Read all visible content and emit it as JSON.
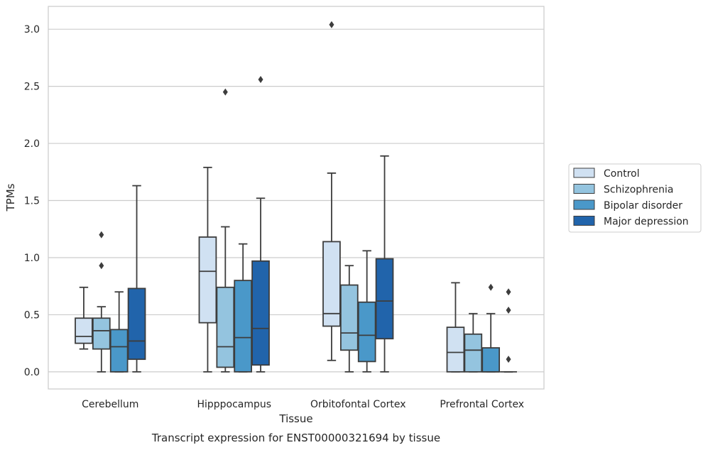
{
  "chart_data": {
    "type": "boxplot",
    "title": "",
    "caption": "Transcript expression for ENST00000321694 by tissue",
    "xlabel": "Tissue",
    "ylabel": "TPMs",
    "ylim": [
      -0.15,
      3.2
    ],
    "yticks": [
      0.0,
      0.5,
      1.0,
      1.5,
      2.0,
      2.5,
      3.0
    ],
    "ytick_labels": [
      "0.0",
      "0.5",
      "1.0",
      "1.5",
      "2.0",
      "2.5",
      "3.0"
    ],
    "grid": "horizontal",
    "legend_position": "right",
    "categories": [
      "Cerebellum",
      "Hipppocampus",
      "Orbitofontal Cortex",
      "Prefrontal Cortex"
    ],
    "series": [
      {
        "name": "Control",
        "color": "#d0e1f2",
        "boxes": [
          {
            "whislo": 0.2,
            "q1": 0.25,
            "med": 0.31,
            "q3": 0.47,
            "whishi": 0.74,
            "fliers": []
          },
          {
            "whislo": 0.0,
            "q1": 0.43,
            "med": 0.88,
            "q3": 1.18,
            "whishi": 1.79,
            "fliers": []
          },
          {
            "whislo": 0.1,
            "q1": 0.4,
            "med": 0.51,
            "q3": 1.14,
            "whishi": 1.74,
            "fliers": [
              3.04
            ]
          },
          {
            "whislo": 0.0,
            "q1": 0.0,
            "med": 0.17,
            "q3": 0.39,
            "whishi": 0.78,
            "fliers": []
          }
        ]
      },
      {
        "name": "Schizophrenia",
        "color": "#94c4df",
        "boxes": [
          {
            "whislo": 0.0,
            "q1": 0.2,
            "med": 0.36,
            "q3": 0.47,
            "whishi": 0.57,
            "fliers": [
              1.2,
              0.93
            ]
          },
          {
            "whislo": 0.0,
            "q1": 0.04,
            "med": 0.22,
            "q3": 0.74,
            "whishi": 1.27,
            "fliers": [
              2.45
            ]
          },
          {
            "whislo": 0.0,
            "q1": 0.19,
            "med": 0.34,
            "q3": 0.76,
            "whishi": 0.93,
            "fliers": []
          },
          {
            "whislo": 0.0,
            "q1": 0.0,
            "med": 0.19,
            "q3": 0.33,
            "whishi": 0.51,
            "fliers": []
          }
        ]
      },
      {
        "name": "Bipolar disorder",
        "color": "#4a98c9",
        "boxes": [
          {
            "whislo": 0.0,
            "q1": 0.0,
            "med": 0.22,
            "q3": 0.37,
            "whishi": 0.7,
            "fliers": []
          },
          {
            "whislo": 0.0,
            "q1": 0.0,
            "med": 0.3,
            "q3": 0.8,
            "whishi": 1.12,
            "fliers": []
          },
          {
            "whislo": 0.0,
            "q1": 0.09,
            "med": 0.32,
            "q3": 0.61,
            "whishi": 1.06,
            "fliers": []
          },
          {
            "whislo": 0.0,
            "q1": 0.0,
            "med": 0.0,
            "q3": 0.21,
            "whishi": 0.51,
            "fliers": [
              0.74
            ]
          }
        ]
      },
      {
        "name": "Major depression",
        "color": "#2164ab",
        "boxes": [
          {
            "whislo": 0.0,
            "q1": 0.11,
            "med": 0.27,
            "q3": 0.73,
            "whishi": 1.63,
            "fliers": []
          },
          {
            "whislo": 0.0,
            "q1": 0.06,
            "med": 0.38,
            "q3": 0.97,
            "whishi": 1.52,
            "fliers": [
              2.56
            ]
          },
          {
            "whislo": 0.0,
            "q1": 0.29,
            "med": 0.62,
            "q3": 0.99,
            "whishi": 1.89,
            "fliers": []
          },
          {
            "whislo": 0.0,
            "q1": 0.0,
            "med": 0.0,
            "q3": 0.0,
            "whishi": 0.0,
            "fliers": [
              0.7,
              0.54,
              0.11
            ]
          }
        ]
      }
    ]
  }
}
